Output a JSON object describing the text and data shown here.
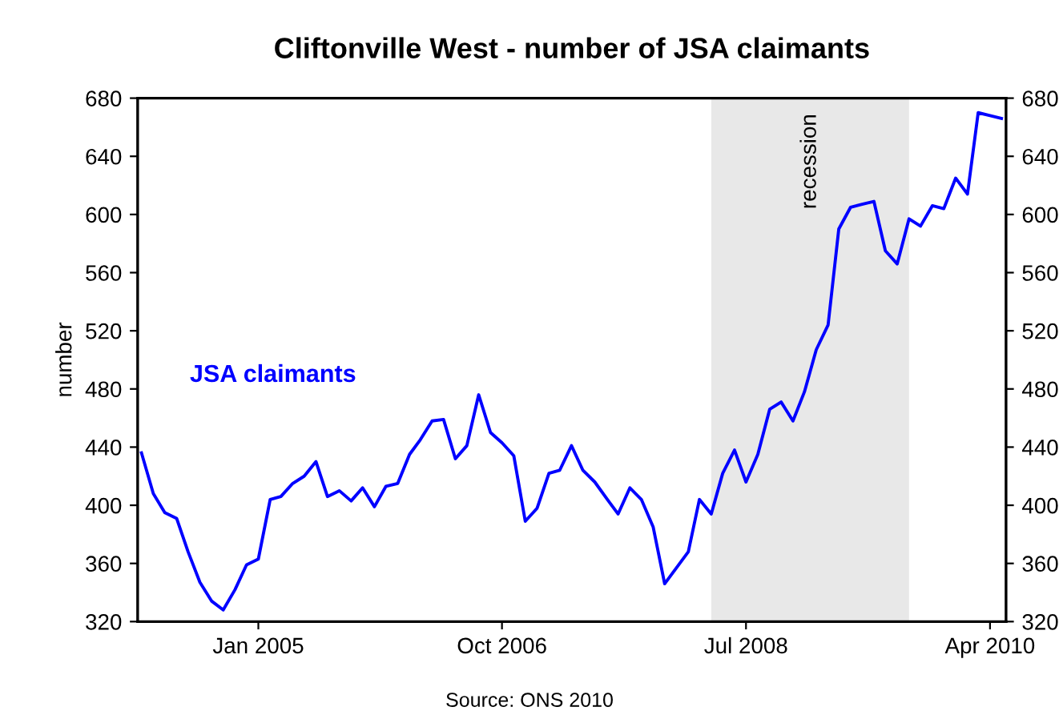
{
  "chart_data": {
    "type": "line",
    "title": "Cliftonville West - number of JSA claimants",
    "ylabel": "number",
    "annotations": [
      "Source: ONS 2010"
    ],
    "x": [
      "2004-03",
      "2004-04",
      "2004-05",
      "2004-06",
      "2004-07",
      "2004-08",
      "2004-09",
      "2004-10",
      "2004-11",
      "2004-12",
      "2005-01",
      "2005-02",
      "2005-03",
      "2005-04",
      "2005-05",
      "2005-06",
      "2005-07",
      "2005-08",
      "2005-09",
      "2005-10",
      "2005-11",
      "2005-12",
      "2006-01",
      "2006-02",
      "2006-03",
      "2006-04",
      "2006-05",
      "2006-06",
      "2006-07",
      "2006-08",
      "2006-09",
      "2006-10",
      "2006-11",
      "2006-12",
      "2007-01",
      "2007-02",
      "2007-03",
      "2007-04",
      "2007-05",
      "2007-06",
      "2007-07",
      "2007-08",
      "2007-09",
      "2007-10",
      "2007-11",
      "2007-12",
      "2008-01",
      "2008-02",
      "2008-03",
      "2008-04",
      "2008-05",
      "2008-06",
      "2008-07",
      "2008-08",
      "2008-09",
      "2008-10",
      "2008-11",
      "2008-12",
      "2009-01",
      "2009-02",
      "2009-03",
      "2009-04",
      "2009-05",
      "2009-06",
      "2009-07",
      "2009-08",
      "2009-09",
      "2009-10",
      "2009-11",
      "2009-12",
      "2010-01",
      "2010-02",
      "2010-03",
      "2010-04",
      "2010-05"
    ],
    "series": [
      {
        "name": "JSA claimants",
        "color": "#0000ff",
        "values": [
          436,
          408,
          395,
          391,
          368,
          347,
          334,
          328,
          342,
          359,
          363,
          404,
          406,
          415,
          420,
          430,
          406,
          410,
          403,
          412,
          399,
          413,
          415,
          435,
          445,
          458,
          459,
          432,
          441,
          476,
          450,
          443,
          434,
          389,
          398,
          422,
          424,
          441,
          424,
          416,
          405,
          394,
          412,
          404,
          385,
          346,
          357,
          368,
          404,
          394,
          422,
          438,
          416,
          435,
          466,
          471,
          458,
          478,
          507,
          524,
          590,
          605,
          607,
          609,
          575,
          566,
          597,
          592,
          606,
          604,
          625,
          614,
          670,
          668,
          666
        ]
      }
    ],
    "xlim": [
      "2004-02-20",
      "2010-05-13"
    ],
    "xticks": [
      {
        "value": "2005-01",
        "label": "Jan 2005"
      },
      {
        "value": "2006-10",
        "label": "Oct 2006"
      },
      {
        "value": "2008-07",
        "label": "Jul 2008"
      },
      {
        "value": "2010-04",
        "label": "Apr 2010"
      }
    ],
    "ylim": [
      320,
      680
    ],
    "yticks": [
      320,
      360,
      400,
      440,
      480,
      520,
      560,
      600,
      640,
      680
    ],
    "y2lim": [
      320,
      680
    ],
    "y2ticks": [
      320,
      360,
      400,
      440,
      480,
      520,
      560,
      600,
      640,
      680
    ],
    "bands": [
      {
        "axis": "x",
        "from": "2008-04",
        "to": "2009-09",
        "label": "recession",
        "color": "#e8e8e8"
      }
    ],
    "grid": false,
    "legend": false,
    "marker": "none",
    "line_style": "solid"
  }
}
